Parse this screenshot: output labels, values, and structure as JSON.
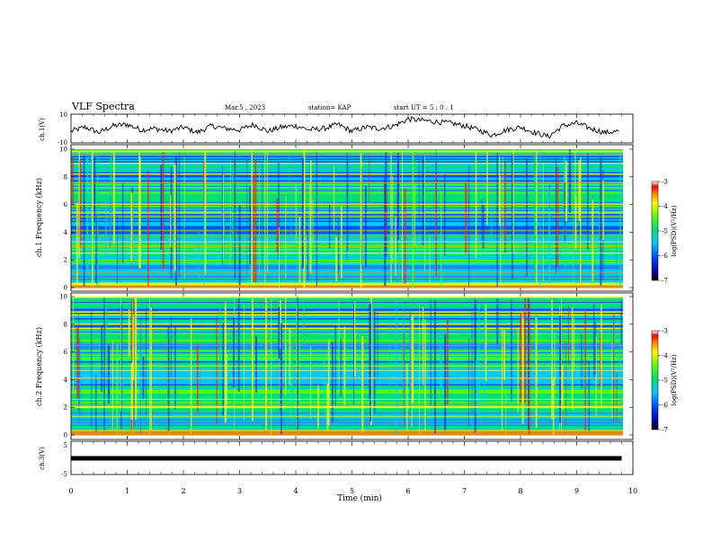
{
  "header": {
    "title": "VLF Spectra",
    "date": "Mar.5 , 2023",
    "station": "station= KAP",
    "start": "start UT = 5 : 0 : 1"
  },
  "colorbar": {
    "label": "log(PSD)(V²/Hz)",
    "ticks": [
      "-3",
      "-4",
      "-5",
      "-6",
      "-7"
    ]
  },
  "chart_data": [
    {
      "type": "line",
      "ylabel": "ch.1(V)",
      "ylim": [
        -10,
        10
      ],
      "yticks": [
        "10",
        "-10"
      ],
      "xlim": [
        0,
        10
      ],
      "series": [
        {
          "x": [
            0,
            0.25,
            0.5,
            0.75,
            1,
            1.25,
            1.5,
            1.75,
            2,
            2.25,
            2.5,
            2.75,
            3,
            3.25,
            3.5,
            3.75,
            4,
            4.25,
            4.5,
            4.75,
            5,
            5.25,
            5.5,
            5.75,
            6,
            6.25,
            6.5,
            6.75,
            7,
            7.25,
            7.5,
            7.75,
            8,
            8.25,
            8.5,
            8.75,
            9,
            9.25,
            9.5,
            9.75
          ],
          "y": [
            -2,
            1,
            -3,
            2,
            3,
            -1,
            0,
            -2,
            1,
            -3,
            2,
            0,
            -1,
            3,
            -2,
            1,
            2,
            -1,
            0,
            3,
            -2,
            1,
            0,
            2,
            7,
            6,
            5,
            4,
            2,
            -1,
            -5,
            -1,
            1,
            -3,
            -6,
            2,
            4,
            0,
            -3,
            -2
          ]
        }
      ]
    },
    {
      "type": "heatmap",
      "ylabel": "ch.1 Frequency (kHz)",
      "ylim": [
        0,
        10
      ],
      "yticks": [
        "0",
        "2",
        "4",
        "6",
        "8",
        "10"
      ],
      "xlim": [
        0,
        10
      ],
      "zlim": [
        -7,
        -3
      ]
    },
    {
      "type": "heatmap",
      "ylabel": "ch.2 Frequency (kHz)",
      "ylim": [
        0,
        10
      ],
      "yticks": [
        "0",
        "2",
        "4",
        "6",
        "8",
        "10"
      ],
      "xlim": [
        0,
        10
      ],
      "zlim": [
        -7,
        -3
      ]
    },
    {
      "type": "line",
      "ylabel": "ch.3(V)",
      "ylim": [
        -5,
        5
      ],
      "yticks": [
        "5",
        "-5"
      ],
      "xlim": [
        0,
        10
      ],
      "xlabel": "Time (min)",
      "xticks": [
        "0",
        "1",
        "2",
        "3",
        "4",
        "5",
        "6",
        "7",
        "8",
        "9",
        "10"
      ],
      "series": [
        {
          "x": [
            0,
            9.8
          ],
          "y": [
            0,
            0
          ]
        }
      ]
    }
  ]
}
